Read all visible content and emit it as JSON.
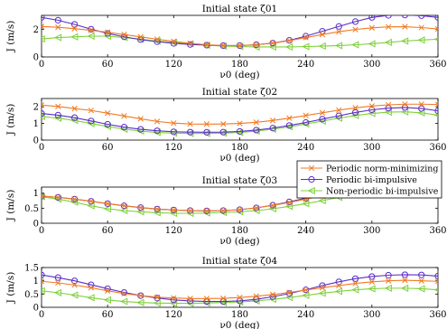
{
  "chart_data": [
    {
      "type": "line",
      "title": "Initial state ζ01",
      "xlabel": "ν0 (deg)",
      "ylabel": "J (m/s)",
      "xlim": [
        0,
        360
      ],
      "ylim": [
        0,
        3
      ],
      "xticks": [
        0,
        60,
        120,
        180,
        240,
        300,
        360
      ],
      "yticks": [
        0,
        2
      ],
      "grid": false,
      "x": [
        0,
        15,
        30,
        45,
        60,
        75,
        90,
        105,
        120,
        135,
        150,
        165,
        180,
        195,
        210,
        225,
        240,
        255,
        270,
        285,
        300,
        315,
        330,
        345,
        360
      ],
      "series": [
        {
          "name": "Periodic norm-minimizing",
          "values": [
            2.2,
            2.14,
            2.04,
            1.92,
            1.78,
            1.62,
            1.45,
            1.28,
            1.12,
            0.98,
            0.88,
            0.82,
            0.82,
            0.88,
            1.0,
            1.18,
            1.4,
            1.62,
            1.82,
            1.98,
            2.1,
            2.17,
            2.18,
            2.12,
            2.02
          ]
        },
        {
          "name": "Periodic bi-impulsive",
          "values": [
            2.85,
            2.65,
            2.35,
            2.0,
            1.7,
            1.45,
            1.25,
            1.1,
            0.98,
            0.9,
            0.85,
            0.82,
            0.82,
            0.88,
            1.0,
            1.2,
            1.5,
            1.85,
            2.2,
            2.55,
            2.85,
            3.0,
            3.02,
            2.98,
            2.85
          ]
        },
        {
          "name": "Non-periodic bi-impulsive",
          "values": [
            1.3,
            1.4,
            1.45,
            1.5,
            1.5,
            1.4,
            1.28,
            1.15,
            1.05,
            0.95,
            0.85,
            0.78,
            0.75,
            0.72,
            0.72,
            0.72,
            0.75,
            0.78,
            0.82,
            0.88,
            0.95,
            1.05,
            1.15,
            1.22,
            1.28
          ]
        }
      ]
    },
    {
      "type": "line",
      "title": "Initial state ζ02",
      "xlabel": "ν0 (deg)",
      "ylabel": "J (m/s)",
      "xlim": [
        0,
        360
      ],
      "ylim": [
        0,
        2.5
      ],
      "xticks": [
        0,
        60,
        120,
        180,
        240,
        300,
        360
      ],
      "yticks": [
        0,
        1,
        2
      ],
      "grid": false,
      "x": [
        0,
        15,
        30,
        45,
        60,
        75,
        90,
        105,
        120,
        135,
        150,
        165,
        180,
        195,
        210,
        225,
        240,
        255,
        270,
        285,
        300,
        315,
        330,
        345,
        360
      ],
      "series": [
        {
          "name": "Periodic norm-minimizing",
          "values": [
            2.1,
            2.02,
            1.9,
            1.78,
            1.62,
            1.45,
            1.28,
            1.12,
            1.02,
            0.97,
            0.96,
            0.97,
            1.0,
            1.07,
            1.18,
            1.32,
            1.48,
            1.64,
            1.8,
            1.94,
            2.05,
            2.12,
            2.16,
            2.16,
            2.14
          ]
        },
        {
          "name": "Periodic bi-impulsive",
          "values": [
            1.6,
            1.5,
            1.35,
            1.15,
            0.95,
            0.78,
            0.65,
            0.56,
            0.5,
            0.48,
            0.47,
            0.48,
            0.52,
            0.6,
            0.72,
            0.88,
            1.06,
            1.26,
            1.46,
            1.66,
            1.82,
            1.92,
            1.96,
            1.9,
            1.76
          ]
        },
        {
          "name": "Non-periodic bi-impulsive",
          "values": [
            1.42,
            1.32,
            1.18,
            1.0,
            0.82,
            0.66,
            0.54,
            0.46,
            0.42,
            0.4,
            0.4,
            0.42,
            0.46,
            0.54,
            0.66,
            0.8,
            0.97,
            1.14,
            1.32,
            1.48,
            1.6,
            1.68,
            1.7,
            1.64,
            1.5
          ]
        }
      ]
    },
    {
      "type": "line",
      "title": "Initial state ζ03",
      "xlabel": "ν0 (deg)",
      "ylabel": "J (m/s)",
      "xlim": [
        0,
        360
      ],
      "ylim": [
        0,
        1.2
      ],
      "xticks": [
        0,
        60,
        120,
        180,
        240,
        300,
        360
      ],
      "yticks": [
        0,
        0.5,
        1
      ],
      "grid": false,
      "x": [
        0,
        15,
        30,
        45,
        60,
        75,
        90,
        105,
        120,
        135,
        150,
        165,
        180,
        195,
        210,
        225,
        240,
        255,
        270,
        285,
        300,
        315,
        330,
        345,
        360
      ],
      "series": [
        {
          "name": "Periodic norm-minimizing",
          "values": [
            0.9,
            0.86,
            0.8,
            0.73,
            0.65,
            0.58,
            0.52,
            0.47,
            0.44,
            0.42,
            0.41,
            0.42,
            0.45,
            0.51,
            0.59,
            0.69,
            0.8,
            0.91,
            1.0,
            1.07,
            1.11,
            1.13,
            1.12,
            1.07,
            0.99
          ]
        },
        {
          "name": "Periodic bi-impulsive",
          "values": [
            0.9,
            0.86,
            0.8,
            0.73,
            0.65,
            0.58,
            0.52,
            0.47,
            0.44,
            0.42,
            0.41,
            0.42,
            0.45,
            0.51,
            0.6,
            0.71,
            0.83,
            0.95,
            1.05,
            1.12,
            1.16,
            1.18,
            1.16,
            1.1,
            1.0
          ]
        },
        {
          "name": "Non-periodic bi-impulsive",
          "values": [
            0.88,
            0.8,
            0.7,
            0.58,
            0.48,
            0.42,
            0.38,
            0.35,
            0.33,
            0.33,
            0.34,
            0.36,
            0.38,
            0.42,
            0.48,
            0.56,
            0.65,
            0.75,
            0.86,
            0.96,
            1.03,
            1.05,
            1.02,
            0.95,
            0.88
          ]
        }
      ]
    },
    {
      "type": "line",
      "title": "Initial state ζ04",
      "xlabel": "ν0 (deg)",
      "ylabel": "J (m/s)",
      "xlim": [
        0,
        360
      ],
      "ylim": [
        0,
        1.5
      ],
      "xticks": [
        0,
        60,
        120,
        180,
        240,
        300,
        360
      ],
      "yticks": [
        0,
        0.5,
        1,
        1.5
      ],
      "grid": false,
      "x": [
        0,
        15,
        30,
        45,
        60,
        75,
        90,
        105,
        120,
        135,
        150,
        165,
        180,
        195,
        210,
        225,
        240,
        255,
        270,
        285,
        300,
        315,
        330,
        345,
        360
      ],
      "series": [
        {
          "name": "Periodic norm-minimizing",
          "values": [
            0.98,
            0.92,
            0.84,
            0.74,
            0.62,
            0.52,
            0.44,
            0.38,
            0.35,
            0.33,
            0.33,
            0.34,
            0.37,
            0.42,
            0.48,
            0.56,
            0.65,
            0.74,
            0.82,
            0.9,
            0.96,
            1.0,
            1.02,
            1.0,
            0.98
          ]
        },
        {
          "name": "Periodic bi-impulsive",
          "values": [
            1.22,
            1.12,
            1.0,
            0.85,
            0.7,
            0.56,
            0.44,
            0.35,
            0.28,
            0.24,
            0.22,
            0.22,
            0.24,
            0.3,
            0.4,
            0.52,
            0.66,
            0.82,
            0.96,
            1.08,
            1.16,
            1.21,
            1.23,
            1.22,
            1.18
          ]
        },
        {
          "name": "Non-periodic bi-impulsive",
          "values": [
            0.62,
            0.55,
            0.46,
            0.36,
            0.28,
            0.22,
            0.18,
            0.16,
            0.15,
            0.15,
            0.16,
            0.18,
            0.2,
            0.24,
            0.3,
            0.37,
            0.45,
            0.53,
            0.6,
            0.66,
            0.7,
            0.72,
            0.72,
            0.7,
            0.66
          ]
        }
      ]
    }
  ],
  "legend": {
    "placement": "right",
    "entries": [
      "Periodic norm-minimizing",
      "Periodic bi-impulsive",
      "Non-periodic bi-impulsive"
    ]
  },
  "colors": {
    "norm_minimizing": "#f07a22",
    "bi_impulsive": "#5a2ec8",
    "non_periodic": "#7fd13b"
  },
  "markers": {
    "norm_minimizing": "x-mark",
    "bi_impulsive": "circle-mark",
    "non_periodic": "left-triangle-mark"
  }
}
